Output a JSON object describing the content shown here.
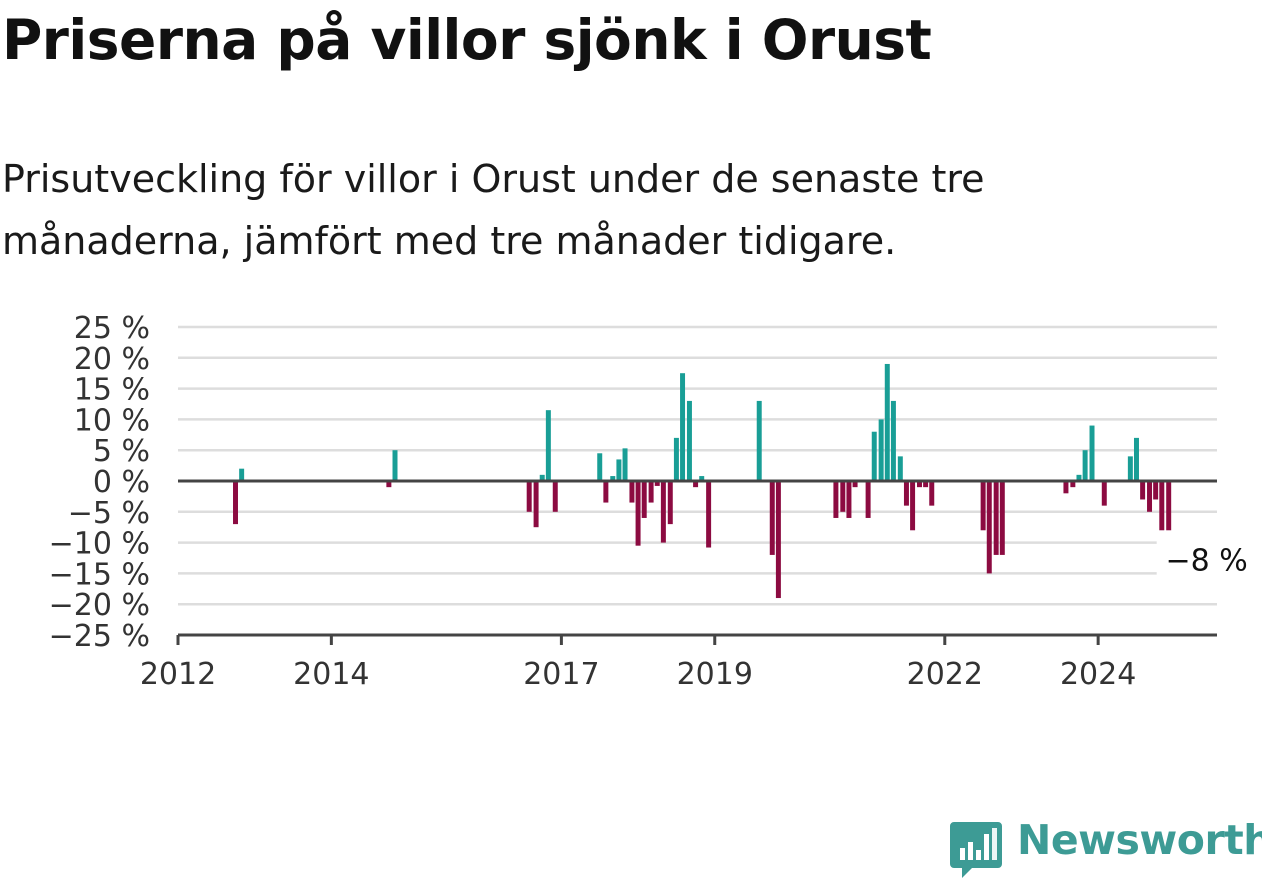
{
  "title": "Priserna på villor sjönk i Orust",
  "subtitle": "Prisutveckling för villor i Orust under de senaste tre månaderna, jämfört med tre månader tidigare.",
  "colors": {
    "positive": "#199e96",
    "negative": "#8c0b41",
    "grid": "#dddddd",
    "axis": "#444444"
  },
  "chart_data": {
    "type": "bar",
    "ylim": [
      -25,
      25
    ],
    "y_ticks": [
      25,
      20,
      15,
      10,
      5,
      0,
      -5,
      -10,
      -15,
      -20,
      -25
    ],
    "y_tick_labels": [
      "25 %",
      "20 %",
      "15 %",
      "10 %",
      "5 %",
      "0 %",
      "−5 %",
      "−10 %",
      "−15 %",
      "−20 %",
      "−25 %"
    ],
    "x_ticks": [
      2012,
      2014,
      2017,
      2019,
      2022,
      2024
    ],
    "x_tick_labels": [
      "2012",
      "2014",
      "2017",
      "2019",
      "2022",
      "2024"
    ],
    "xlim": [
      2012,
      2025.55
    ],
    "grid": true,
    "bars": [
      {
        "x": 2012.75,
        "value": -7
      },
      {
        "x": 2012.83,
        "value": 2
      },
      {
        "x": 2014.75,
        "value": -1
      },
      {
        "x": 2014.83,
        "value": 5
      },
      {
        "x": 2016.58,
        "value": -5
      },
      {
        "x": 2016.67,
        "value": -7.5
      },
      {
        "x": 2016.75,
        "value": 1
      },
      {
        "x": 2016.83,
        "value": 11.5
      },
      {
        "x": 2016.92,
        "value": -5
      },
      {
        "x": 2017.5,
        "value": 4.5
      },
      {
        "x": 2017.58,
        "value": -3.5
      },
      {
        "x": 2017.67,
        "value": 0.8
      },
      {
        "x": 2017.75,
        "value": 3.5
      },
      {
        "x": 2017.83,
        "value": 5.3
      },
      {
        "x": 2017.92,
        "value": -3.5
      },
      {
        "x": 2018.0,
        "value": -10.5
      },
      {
        "x": 2018.08,
        "value": -6
      },
      {
        "x": 2018.17,
        "value": -3.5
      },
      {
        "x": 2018.25,
        "value": -0.8
      },
      {
        "x": 2018.33,
        "value": -10
      },
      {
        "x": 2018.42,
        "value": -7
      },
      {
        "x": 2018.5,
        "value": 7
      },
      {
        "x": 2018.58,
        "value": 17.5
      },
      {
        "x": 2018.67,
        "value": 13
      },
      {
        "x": 2018.75,
        "value": -1
      },
      {
        "x": 2018.83,
        "value": 0.8
      },
      {
        "x": 2018.92,
        "value": -10.8
      },
      {
        "x": 2019.58,
        "value": 13
      },
      {
        "x": 2019.75,
        "value": -12
      },
      {
        "x": 2019.83,
        "value": -19
      },
      {
        "x": 2020.58,
        "value": -6
      },
      {
        "x": 2020.67,
        "value": -5
      },
      {
        "x": 2020.75,
        "value": -6
      },
      {
        "x": 2020.83,
        "value": -1
      },
      {
        "x": 2021.0,
        "value": -6
      },
      {
        "x": 2021.08,
        "value": 8
      },
      {
        "x": 2021.17,
        "value": 10
      },
      {
        "x": 2021.25,
        "value": 19
      },
      {
        "x": 2021.33,
        "value": 13
      },
      {
        "x": 2021.42,
        "value": 4
      },
      {
        "x": 2021.5,
        "value": -4
      },
      {
        "x": 2021.58,
        "value": -8
      },
      {
        "x": 2021.67,
        "value": -1
      },
      {
        "x": 2021.75,
        "value": -1
      },
      {
        "x": 2021.83,
        "value": -4
      },
      {
        "x": 2022.5,
        "value": -8
      },
      {
        "x": 2022.58,
        "value": -15
      },
      {
        "x": 2022.67,
        "value": -12
      },
      {
        "x": 2022.75,
        "value": -12
      },
      {
        "x": 2023.58,
        "value": -2
      },
      {
        "x": 2023.67,
        "value": -1
      },
      {
        "x": 2023.75,
        "value": 1
      },
      {
        "x": 2023.83,
        "value": 5
      },
      {
        "x": 2023.92,
        "value": 9
      },
      {
        "x": 2024.08,
        "value": -4
      },
      {
        "x": 2024.42,
        "value": 4
      },
      {
        "x": 2024.5,
        "value": 7
      },
      {
        "x": 2024.58,
        "value": -3
      },
      {
        "x": 2024.67,
        "value": -5
      },
      {
        "x": 2024.75,
        "value": -3
      },
      {
        "x": 2024.83,
        "value": -8
      },
      {
        "x": 2024.92,
        "value": -8
      }
    ],
    "annotation": {
      "x": 2024.92,
      "value": -8,
      "label": "−8 %"
    }
  },
  "brand": {
    "name": "Newsworthy",
    "logo_icon": "newsworthy-bar-chart-icon"
  }
}
